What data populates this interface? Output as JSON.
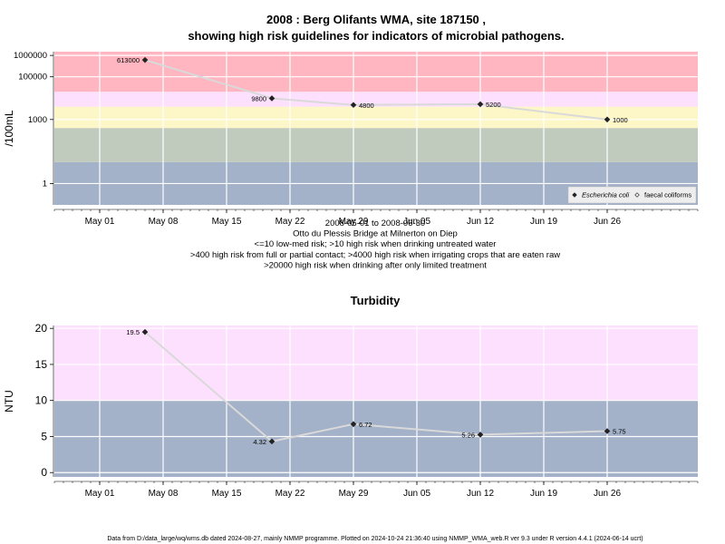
{
  "title_line1": "2008 : Berg Olifants WMA, site 187150 ,",
  "title_line2": "showing high risk guidelines for indicators of microbial pathogens.",
  "subtitle_lines": [
    "2008-05-01 to 2008-06-30",
    "Otto du Plessis Bridge at Milnerton on Diep",
    "<=10 low-med risk; >10 high risk when drinking untreated water",
    ">400 high risk from full or partial contact; >4000 high risk when irrigating crops that are eaten raw",
    ">20000 high risk when drinking after only limited treatment"
  ],
  "footer": "Data from D:/data_large/wq/wms.db dated 2024-08-27, mainly NMMP programme. Plotted on 2024-10-24 21:36:40 using NMMP_WMA_web.R ver 9.3 under R version 4.4.1 (2024-06-14 ucrt)",
  "colors": {
    "band_blue": "#a3b1c9",
    "band_green": "#c0cbbe",
    "band_yellow": "#fdf6c6",
    "band_pink": "#fde0fd",
    "band_red": "#ffb6c1",
    "line": "#d9d9d9",
    "point": "#222222",
    "grid": "#ffffff"
  },
  "chart_data": [
    {
      "type": "line",
      "scale": "log",
      "title": "",
      "ylabel": "/100mL",
      "xlim": [
        "2008-04-26",
        "2008-07-06"
      ],
      "ylim": [
        0.1,
        1500000
      ],
      "x_ticks": [
        {
          "date": "2008-05-01",
          "label": "May 01"
        },
        {
          "date": "2008-05-08",
          "label": "May 08"
        },
        {
          "date": "2008-05-15",
          "label": "May 15"
        },
        {
          "date": "2008-05-22",
          "label": "May 22"
        },
        {
          "date": "2008-05-29",
          "label": "May 29"
        },
        {
          "date": "2008-06-05",
          "label": "Jun 05"
        },
        {
          "date": "2008-06-12",
          "label": "Jun 12"
        },
        {
          "date": "2008-06-19",
          "label": "Jun 19"
        },
        {
          "date": "2008-06-26",
          "label": "Jun 26"
        }
      ],
      "y_ticks": [
        {
          "value": 1,
          "label": "1"
        },
        {
          "value": 1000,
          "label": "1000"
        },
        {
          "value": 100000,
          "label": "100000"
        },
        {
          "value": 1000000,
          "label": "1000000"
        }
      ],
      "bands": [
        {
          "from": 0.1,
          "to": 10,
          "color": "band_blue"
        },
        {
          "from": 10,
          "to": 400,
          "color": "band_green"
        },
        {
          "from": 400,
          "to": 4000,
          "color": "band_yellow"
        },
        {
          "from": 4000,
          "to": 20000,
          "color": "band_pink"
        },
        {
          "from": 20000,
          "to": 1500000,
          "color": "band_red"
        }
      ],
      "series": [
        {
          "name": "Escherichia coli",
          "points": [
            {
              "date": "2008-05-06",
              "value": 613000,
              "label": "613000",
              "label_side": "left"
            },
            {
              "date": "2008-05-20",
              "value": 9800,
              "label": "9800",
              "label_side": "left"
            },
            {
              "date": "2008-05-29",
              "value": 4800,
              "label": "4800",
              "label_side": "right"
            },
            {
              "date": "2008-06-12",
              "value": 5200,
              "label": "5200",
              "label_side": "right"
            },
            {
              "date": "2008-06-26",
              "value": 1000,
              "label": "1000",
              "label_side": "right"
            }
          ]
        }
      ],
      "legend": {
        "position": "bottom-right",
        "entries": [
          {
            "label": "Escherichia coli",
            "marker": "filled-diamond",
            "italic": true
          },
          {
            "label": "faecal coliforms",
            "marker": "open-diamond",
            "italic": false
          }
        ]
      }
    },
    {
      "type": "line",
      "scale": "linear",
      "title": "Turbidity",
      "ylabel": "NTU",
      "xlim": [
        "2008-04-26",
        "2008-07-06"
      ],
      "ylim": [
        -0.6,
        20.4
      ],
      "x_ticks": [
        {
          "date": "2008-05-01",
          "label": "May 01"
        },
        {
          "date": "2008-05-08",
          "label": "May 08"
        },
        {
          "date": "2008-05-15",
          "label": "May 15"
        },
        {
          "date": "2008-05-22",
          "label": "May 22"
        },
        {
          "date": "2008-05-29",
          "label": "May 29"
        },
        {
          "date": "2008-06-05",
          "label": "Jun 05"
        },
        {
          "date": "2008-06-12",
          "label": "Jun 12"
        },
        {
          "date": "2008-06-19",
          "label": "Jun 19"
        },
        {
          "date": "2008-06-26",
          "label": "Jun 26"
        }
      ],
      "y_ticks": [
        {
          "value": 0,
          "label": "0"
        },
        {
          "value": 5,
          "label": "5"
        },
        {
          "value": 10,
          "label": "10"
        },
        {
          "value": 15,
          "label": "15"
        },
        {
          "value": 20,
          "label": "20"
        }
      ],
      "bands": [
        {
          "from": -0.6,
          "to": 10,
          "color": "band_blue"
        },
        {
          "from": 10,
          "to": 20.4,
          "color": "band_pink"
        }
      ],
      "series": [
        {
          "points": [
            {
              "date": "2008-05-06",
              "value": 19.5,
              "label": "19.5",
              "label_side": "left"
            },
            {
              "date": "2008-05-20",
              "value": 4.32,
              "label": "4.32",
              "label_side": "left"
            },
            {
              "date": "2008-05-29",
              "value": 6.72,
              "label": "6.72",
              "label_side": "right"
            },
            {
              "date": "2008-06-12",
              "value": 5.26,
              "label": "5.26",
              "label_side": "left"
            },
            {
              "date": "2008-06-26",
              "value": 5.75,
              "label": "5.75",
              "label_side": "right"
            }
          ]
        }
      ]
    }
  ]
}
